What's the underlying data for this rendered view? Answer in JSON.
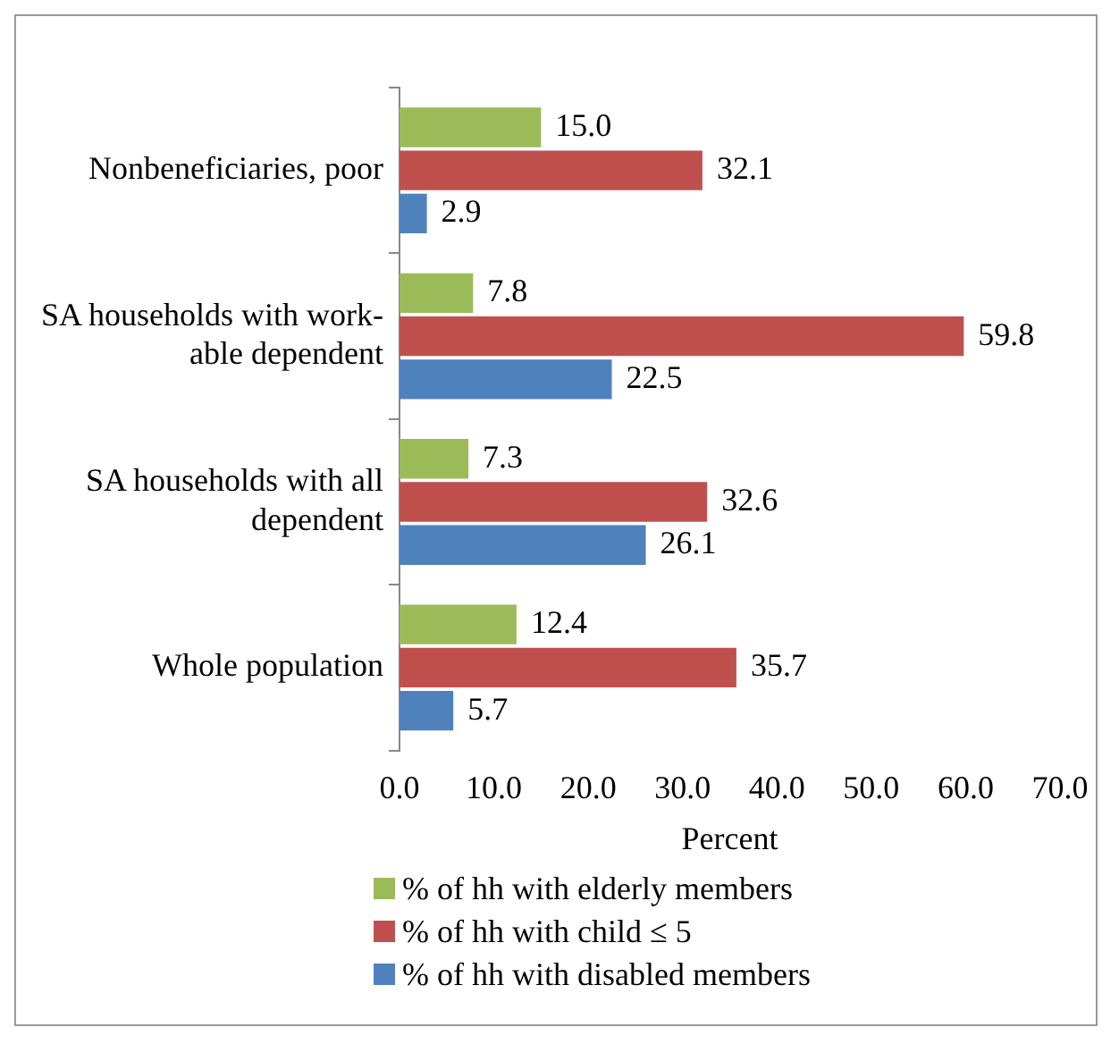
{
  "chart_data": {
    "type": "bar",
    "orientation": "horizontal",
    "xlabel": "Percent",
    "categories": [
      "Nonbeneficiaries, poor",
      "SA households with work-able dependent",
      "SA households with all dependent",
      "Whole population"
    ],
    "series": [
      {
        "name": "% of hh with elderly members",
        "color": "#9bbb59",
        "values": [
          15.0,
          7.8,
          7.3,
          12.4
        ],
        "value_labels": [
          "15.0",
          "7.8",
          "7.3",
          "12.4"
        ]
      },
      {
        "name": "% of hh with child ≤ 5",
        "color": "#c0504d",
        "values": [
          32.1,
          59.8,
          32.6,
          35.7
        ],
        "value_labels": [
          "32.1",
          "59.8",
          "32.6",
          "35.7"
        ]
      },
      {
        "name": "% of hh with disabled members",
        "color": "#4f81bd",
        "values": [
          2.9,
          22.5,
          26.1,
          5.7
        ],
        "value_labels": [
          "2.9",
          "22.5",
          "26.1",
          "5.7"
        ]
      }
    ],
    "xlim": [
      0,
      70
    ],
    "xticks": [
      {
        "value": 0,
        "label": "0.0"
      },
      {
        "value": 10,
        "label": "10.0"
      },
      {
        "value": 20,
        "label": "20.0"
      },
      {
        "value": 30,
        "label": "30.0"
      },
      {
        "value": 40,
        "label": "40.0"
      },
      {
        "value": 50,
        "label": "50.0"
      },
      {
        "value": 60,
        "label": "60.0"
      },
      {
        "value": 70,
        "label": "70.0"
      }
    ],
    "grid": false,
    "legend": "bottom"
  }
}
